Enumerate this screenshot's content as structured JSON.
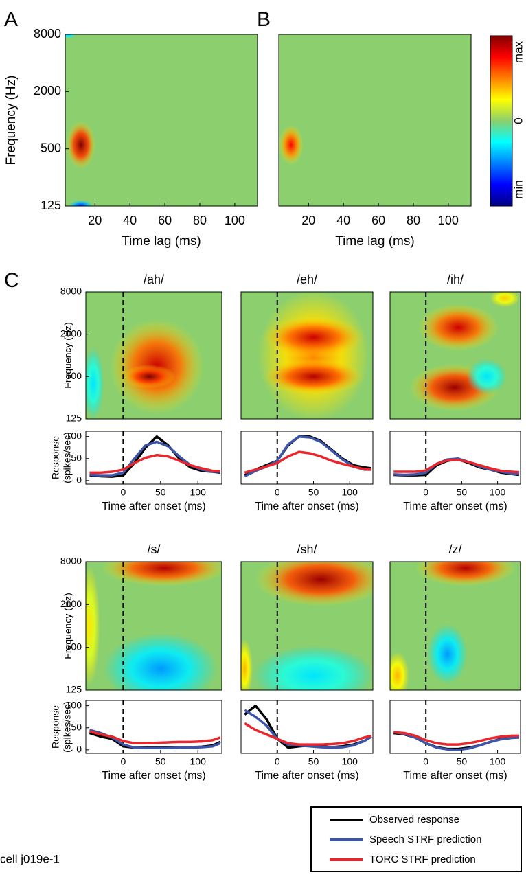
{
  "panel_labels": [
    "A",
    "B",
    "C"
  ],
  "colorbar": {
    "labels": [
      "max",
      "0",
      "min"
    ]
  },
  "legend": [
    {
      "name": "Observed response",
      "color": "#000000"
    },
    {
      "name": "Speech STRF prediction",
      "color": "#3b55a8"
    },
    {
      "name": "TORC STRF prediction",
      "color": "#e8262b"
    }
  ],
  "footnote": "cell j019e-1",
  "chart_data": [
    {
      "type": "heatmap",
      "xlabel": "Time lag (ms)",
      "ylabel": "Frequency (Hz)",
      "xlim": [
        3,
        113
      ],
      "xticks": [
        20,
        40,
        60,
        80,
        100
      ],
      "ylim": [
        125,
        8000
      ],
      "yticks": [
        125,
        500,
        2000,
        8000
      ],
      "log_y": true,
      "background": "#8ccf6e",
      "blobs": [
        {
          "x": 12,
          "y": 550,
          "rx": 6,
          "ry": 0.6,
          "value": 1
        },
        {
          "x": 12,
          "y": 125,
          "rx": 5,
          "ry": 0.15,
          "value": -0.7
        },
        {
          "x": 5,
          "y": 8000,
          "rx": 3,
          "ry": 0.1,
          "value": -0.4
        }
      ]
    },
    {
      "type": "heatmap",
      "xlabel": "Time lag (ms)",
      "xlim": [
        3,
        113
      ],
      "xticks": [
        20,
        40,
        60,
        80,
        100
      ],
      "ylim": [
        125,
        8000
      ],
      "log_y": true,
      "background": "#8ccf6e",
      "blobs": [
        {
          "x": 10,
          "y": 550,
          "rx": 5,
          "ry": 0.5,
          "value": 0.75
        }
      ]
    },
    {
      "type": "heatmap",
      "title": "/ah/",
      "ylabel": "Frequency (Hz)",
      "xlim": [
        -50,
        132
      ],
      "ylim": [
        125,
        8000
      ],
      "yticks": [
        125,
        500,
        2000,
        8000
      ],
      "log_y": true,
      "onset": 0,
      "background": "#8ccf6e",
      "blobs": [
        {
          "x": 45,
          "y": 700,
          "rx": 45,
          "ry": 1.6,
          "value": 0.85
        },
        {
          "x": 35,
          "y": 500,
          "rx": 25,
          "ry": 0.4,
          "value": 1
        },
        {
          "x": -40,
          "y": 400,
          "rx": 10,
          "ry": 1.2,
          "value": -0.3
        }
      ]
    },
    {
      "type": "heatmap",
      "title": "/eh/",
      "xlim": [
        -50,
        132
      ],
      "ylim": [
        125,
        8000
      ],
      "log_y": true,
      "onset": 0,
      "background": "#8ccf6e",
      "blobs": [
        {
          "x": 50,
          "y": 1000,
          "rx": 55,
          "ry": 2.2,
          "value": 0.5
        },
        {
          "x": 50,
          "y": 500,
          "rx": 50,
          "ry": 0.6,
          "value": 0.9
        },
        {
          "x": 50,
          "y": 1800,
          "rx": 50,
          "ry": 0.7,
          "value": 0.85
        }
      ]
    },
    {
      "type": "heatmap",
      "title": "/ih/",
      "xlim": [
        -50,
        132
      ],
      "ylim": [
        125,
        8000
      ],
      "log_y": true,
      "onset": 0,
      "background": "#8ccf6e",
      "blobs": [
        {
          "x": 45,
          "y": 2500,
          "rx": 40,
          "ry": 0.8,
          "value": 0.85
        },
        {
          "x": 40,
          "y": 350,
          "rx": 45,
          "ry": 0.8,
          "value": 0.95
        },
        {
          "x": 110,
          "y": 6500,
          "rx": 15,
          "ry": 0.3,
          "value": 0.35
        },
        {
          "x": 85,
          "y": 500,
          "rx": 20,
          "ry": 0.6,
          "value": -0.3
        }
      ]
    },
    {
      "type": "heatmap",
      "title": "/s/",
      "ylabel": "Frequency (Hz)",
      "xlim": [
        -50,
        132
      ],
      "ylim": [
        125,
        8000
      ],
      "yticks": [
        125,
        500,
        2000,
        8000
      ],
      "log_y": true,
      "onset": 0,
      "background": "#8ccf6e",
      "blobs": [
        {
          "x": 55,
          "y": 6500,
          "rx": 60,
          "ry": 0.6,
          "value": 0.9
        },
        {
          "x": 50,
          "y": 250,
          "rx": 55,
          "ry": 1.2,
          "value": -0.45
        },
        {
          "x": -45,
          "y": 1000,
          "rx": 10,
          "ry": 2,
          "value": 0.3
        }
      ]
    },
    {
      "type": "heatmap",
      "title": "/sh/",
      "xlim": [
        -50,
        132
      ],
      "ylim": [
        125,
        8000
      ],
      "log_y": true,
      "onset": 0,
      "background": "#8ccf6e",
      "blobs": [
        {
          "x": 60,
          "y": 4500,
          "rx": 65,
          "ry": 0.9,
          "value": 0.95
        },
        {
          "x": 50,
          "y": 200,
          "rx": 60,
          "ry": 1,
          "value": -0.3
        },
        {
          "x": -45,
          "y": 250,
          "rx": 8,
          "ry": 1,
          "value": 0.4
        }
      ]
    },
    {
      "type": "heatmap",
      "title": "/z/",
      "xlim": [
        -50,
        132
      ],
      "ylim": [
        125,
        8000
      ],
      "log_y": true,
      "onset": 0,
      "background": "#8ccf6e",
      "blobs": [
        {
          "x": 55,
          "y": 6500,
          "rx": 50,
          "ry": 0.6,
          "value": 0.9
        },
        {
          "x": 30,
          "y": 400,
          "rx": 20,
          "ry": 1,
          "value": -0.45
        },
        {
          "x": -40,
          "y": 200,
          "rx": 12,
          "ry": 0.8,
          "value": 0.4
        }
      ]
    },
    {
      "type": "line",
      "ylabel": [
        "Response",
        "(spikes/sec)"
      ],
      "xlabel": "Time after onset (ms)",
      "xlim": [
        -50,
        132
      ],
      "xticks": [
        0,
        50,
        100
      ],
      "ylim": [
        -8,
        112
      ],
      "yticks": [
        0,
        50,
        100
      ],
      "onset": 0,
      "x": [
        -45,
        -30,
        -15,
        0,
        15,
        30,
        45,
        60,
        75,
        90,
        105,
        120,
        130
      ],
      "series": [
        {
          "values": [
            12,
            10,
            9,
            12,
            40,
            75,
            100,
            80,
            50,
            30,
            22,
            20,
            18
          ]
        },
        {
          "values": [
            13,
            12,
            12,
            18,
            50,
            80,
            88,
            78,
            55,
            35,
            25,
            20,
            20
          ]
        },
        {
          "values": [
            18,
            18,
            20,
            25,
            40,
            52,
            58,
            55,
            45,
            35,
            28,
            22,
            22
          ]
        }
      ]
    },
    {
      "type": "line",
      "xlabel": "Time after onset (ms)",
      "xlim": [
        -50,
        132
      ],
      "xticks": [
        0,
        50,
        100
      ],
      "ylim": [
        -8,
        112
      ],
      "onset": 0,
      "x": [
        -45,
        -30,
        -15,
        0,
        15,
        30,
        45,
        60,
        75,
        90,
        105,
        120,
        130
      ],
      "series": [
        {
          "values": [
            12,
            25,
            35,
            45,
            80,
            100,
            100,
            90,
            70,
            50,
            35,
            30,
            28
          ]
        },
        {
          "values": [
            10,
            22,
            32,
            45,
            82,
            100,
            98,
            88,
            68,
            48,
            32,
            25,
            25
          ]
        },
        {
          "values": [
            18,
            25,
            32,
            40,
            55,
            65,
            62,
            55,
            45,
            38,
            32,
            26,
            25
          ]
        }
      ]
    },
    {
      "type": "line",
      "xlabel": "Time after onset (ms)",
      "xlim": [
        -50,
        132
      ],
      "xticks": [
        0,
        50,
        100
      ],
      "ylim": [
        -8,
        112
      ],
      "onset": 0,
      "x": [
        -45,
        -30,
        -15,
        0,
        15,
        30,
        45,
        60,
        75,
        90,
        105,
        120,
        130
      ],
      "series": [
        {
          "values": [
            13,
            12,
            12,
            13,
            35,
            45,
            48,
            40,
            30,
            25,
            18,
            15,
            13
          ]
        },
        {
          "values": [
            14,
            13,
            14,
            18,
            38,
            48,
            50,
            42,
            32,
            25,
            20,
            16,
            15
          ]
        },
        {
          "values": [
            20,
            20,
            20,
            23,
            38,
            46,
            47,
            42,
            35,
            28,
            22,
            20,
            19
          ]
        }
      ]
    },
    {
      "type": "line",
      "ylabel": [
        "Response",
        "(spikes/sec)"
      ],
      "xlabel": "Time after onset (ms)",
      "xlim": [
        -50,
        132
      ],
      "xticks": [
        0,
        50,
        100
      ],
      "ylim": [
        -8,
        112
      ],
      "yticks": [
        0,
        50,
        100
      ],
      "onset": 0,
      "x": [
        -45,
        -30,
        -15,
        0,
        15,
        30,
        45,
        60,
        75,
        90,
        105,
        120,
        130
      ],
      "series": [
        {
          "values": [
            38,
            30,
            25,
            8,
            5,
            5,
            6,
            6,
            6,
            6,
            7,
            10,
            18
          ]
        },
        {
          "values": [
            45,
            38,
            28,
            12,
            5,
            4,
            4,
            4,
            5,
            5,
            6,
            8,
            15
          ]
        },
        {
          "values": [
            42,
            35,
            30,
            20,
            15,
            15,
            16,
            17,
            18,
            18,
            19,
            22,
            28
          ]
        }
      ]
    },
    {
      "type": "line",
      "xlabel": "Time after onset (ms)",
      "xlim": [
        -50,
        132
      ],
      "xticks": [
        0,
        50,
        100
      ],
      "ylim": [
        -8,
        112
      ],
      "onset": 0,
      "x": [
        -45,
        -30,
        -15,
        0,
        15,
        30,
        45,
        60,
        75,
        90,
        105,
        120,
        130
      ],
      "series": [
        {
          "values": [
            80,
            100,
            70,
            25,
            5,
            8,
            10,
            8,
            6,
            8,
            12,
            20,
            30
          ]
        },
        {
          "values": [
            90,
            75,
            55,
            25,
            12,
            10,
            8,
            6,
            5,
            6,
            10,
            20,
            30
          ]
        },
        {
          "values": [
            60,
            45,
            35,
            25,
            15,
            12,
            12,
            12,
            13,
            15,
            20,
            28,
            32
          ]
        }
      ]
    },
    {
      "type": "line",
      "xlabel": "Time after onset (ms)",
      "xlim": [
        -50,
        132
      ],
      "xticks": [
        0,
        50,
        100
      ],
      "ylim": [
        -8,
        112
      ],
      "onset": 0,
      "x": [
        -45,
        -30,
        -15,
        0,
        15,
        30,
        45,
        60,
        75,
        90,
        105,
        120,
        130
      ],
      "series": [
        {
          "values": [
            38,
            35,
            28,
            15,
            6,
            2,
            2,
            5,
            10,
            18,
            25,
            28,
            28
          ]
        },
        {
          "values": [
            40,
            36,
            28,
            15,
            5,
            1,
            0,
            3,
            10,
            18,
            24,
            27,
            28
          ]
        },
        {
          "values": [
            40,
            38,
            32,
            22,
            15,
            12,
            12,
            15,
            20,
            26,
            30,
            32,
            32
          ]
        }
      ]
    }
  ]
}
